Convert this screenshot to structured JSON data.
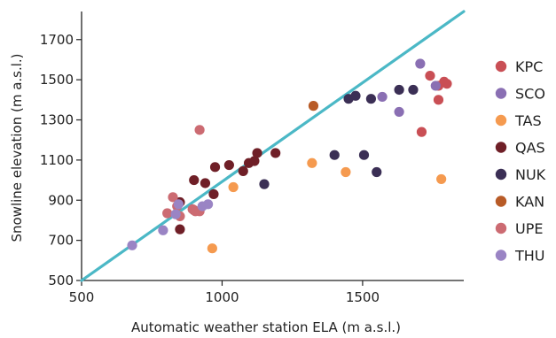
{
  "chart_data": {
    "type": "scatter",
    "title": "",
    "xlabel": "Automatic weather station ELA (m a.s.l.)",
    "ylabel": "Snowline elevation (m a.s.l.)",
    "xlim": [
      500,
      1860
    ],
    "ylim": [
      500,
      1840
    ],
    "xticks": [
      500,
      1000,
      1500
    ],
    "yticks": [
      500,
      700,
      900,
      1100,
      1300,
      1500,
      1700
    ],
    "grid": false,
    "legend_position": "right",
    "reference_line": {
      "name": "1:1 line",
      "x": [
        500,
        1860
      ],
      "y": [
        500,
        1840
      ],
      "color": "#4bb8c6"
    },
    "series": [
      {
        "name": "KPC",
        "color": "#c94f55",
        "points": [
          [
            1740,
            1520
          ],
          [
            1770,
            1470
          ],
          [
            1790,
            1490
          ],
          [
            1800,
            1480
          ],
          [
            1770,
            1400
          ],
          [
            1710,
            1240
          ]
        ]
      },
      {
        "name": "SCO",
        "color": "#8a6fb3",
        "points": [
          [
            1705,
            1580
          ],
          [
            1760,
            1470
          ],
          [
            1630,
            1340
          ],
          [
            1570,
            1415
          ]
        ]
      },
      {
        "name": "TAS",
        "color": "#f59a4f",
        "points": [
          [
            965,
            660
          ],
          [
            1040,
            965
          ],
          [
            1320,
            1085
          ],
          [
            1440,
            1040
          ],
          [
            1780,
            1005
          ]
        ]
      },
      {
        "name": "QAS",
        "color": "#6f1f27",
        "points": [
          [
            850,
            890
          ],
          [
            850,
            755
          ],
          [
            900,
            1000
          ],
          [
            940,
            985
          ],
          [
            970,
            930
          ],
          [
            975,
            1065
          ],
          [
            1025,
            1075
          ],
          [
            1075,
            1045
          ],
          [
            1095,
            1085
          ],
          [
            1115,
            1095
          ],
          [
            1125,
            1135
          ],
          [
            1190,
            1135
          ],
          [
            900,
            850
          ]
        ]
      },
      {
        "name": "NUK",
        "color": "#3b2f55",
        "points": [
          [
            1150,
            980
          ],
          [
            1400,
            1125
          ],
          [
            1450,
            1405
          ],
          [
            1475,
            1420
          ],
          [
            1505,
            1125
          ],
          [
            1530,
            1405
          ],
          [
            1550,
            1040
          ],
          [
            1630,
            1450
          ],
          [
            1680,
            1450
          ]
        ]
      },
      {
        "name": "KAN",
        "color": "#b85b27",
        "points": [
          [
            1325,
            1370
          ]
        ]
      },
      {
        "name": "UPE",
        "color": "#cc6b72",
        "points": [
          [
            920,
            1250
          ],
          [
            825,
            915
          ],
          [
            805,
            835
          ],
          [
            840,
            870
          ],
          [
            850,
            820
          ],
          [
            895,
            855
          ],
          [
            905,
            845
          ],
          [
            920,
            845
          ]
        ]
      },
      {
        "name": "THU",
        "color": "#9a84c4",
        "points": [
          [
            680,
            675
          ],
          [
            790,
            750
          ],
          [
            835,
            830
          ],
          [
            845,
            880
          ],
          [
            950,
            880
          ],
          [
            930,
            870
          ]
        ]
      }
    ]
  }
}
